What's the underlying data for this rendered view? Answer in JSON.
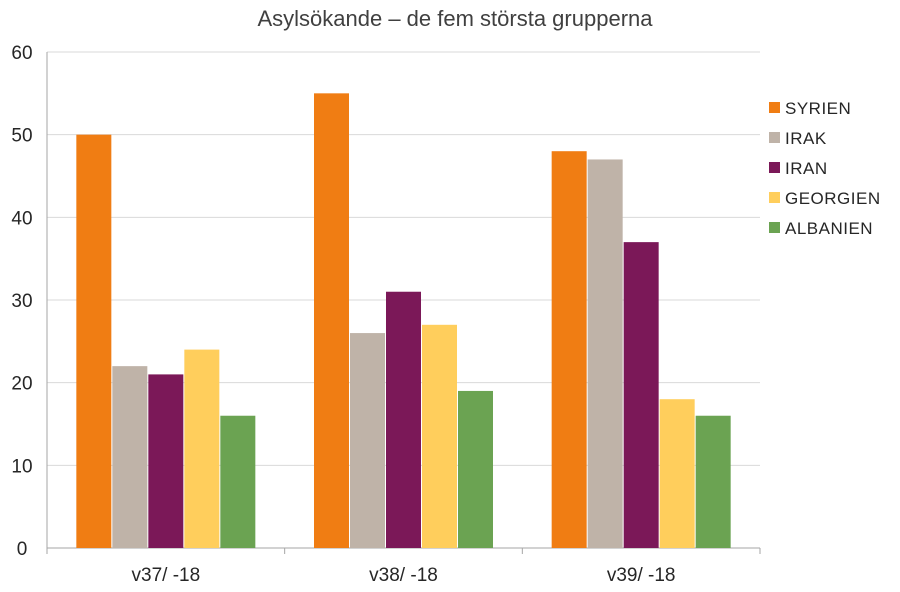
{
  "chart_data": {
    "type": "bar",
    "title": "Asylsökande – de fem största grupperna",
    "xlabel": "",
    "ylabel": "",
    "categories": [
      "v37/ -18",
      "v38/ -18",
      "v39/ -18"
    ],
    "ylim": [
      0,
      60
    ],
    "yticks": [
      0,
      10,
      20,
      30,
      40,
      50,
      60
    ],
    "grid": true,
    "legend_position": "right",
    "series": [
      {
        "name": "SYRIEN",
        "color": "#F07D13",
        "values": [
          50,
          55,
          48
        ]
      },
      {
        "name": "IRAK",
        "color": "#BFB3A8",
        "values": [
          22,
          26,
          47
        ]
      },
      {
        "name": "IRAN",
        "color": "#7B1858",
        "values": [
          21,
          31,
          37
        ]
      },
      {
        "name": "GEORGIEN",
        "color": "#FFCE5C",
        "values": [
          24,
          27,
          18
        ]
      },
      {
        "name": "ALBANIEN",
        "color": "#6BA352",
        "values": [
          16,
          19,
          16
        ]
      }
    ]
  }
}
